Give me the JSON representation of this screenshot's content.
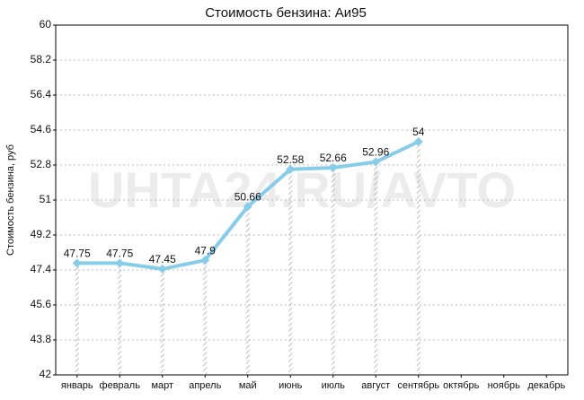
{
  "chart_data": {
    "type": "line",
    "title": "Стоимость бензина: Аи95",
    "y_label": "Стоимость бензина, руб",
    "watermark": "UHTA24.RU/AVTO",
    "categories": [
      "январь",
      "февраль",
      "март",
      "апрель",
      "май",
      "июнь",
      "июль",
      "август",
      "сентябрь",
      "октябрь",
      "ноябрь",
      "декабрь"
    ],
    "series": [
      {
        "name": "Аи95",
        "color": "#87cdea",
        "values": [
          47.75,
          47.75,
          47.45,
          47.9,
          50.66,
          52.58,
          52.66,
          52.96,
          54,
          null,
          null,
          null
        ]
      }
    ],
    "ylim": [
      42,
      60
    ],
    "yticks": [
      42,
      43.8,
      45.6,
      47.4,
      49.2,
      51,
      52.8,
      54.6,
      56.4,
      58.2,
      60
    ],
    "grid": true
  }
}
